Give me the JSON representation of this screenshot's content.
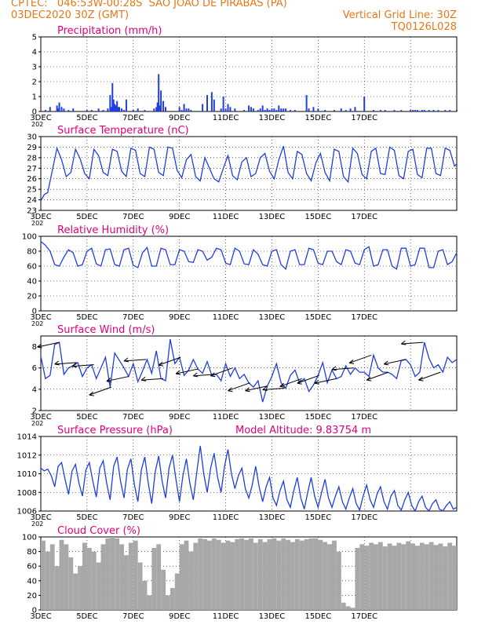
{
  "header": {
    "line1": "CPTEC:   046:53W-00:28S  SAO JOAO DE PIRABAS (PA)",
    "line2_left": "03DEC2020 30Z (GMT)",
    "line2_right": "Vertical Grid Line: 30Z",
    "line3_right": "TQ0126L028",
    "line1_color": "#e67817"
  },
  "colors": {
    "series": "#1f3fe0",
    "bar": "#1f3fe0",
    "cloud": "#a8a8a8",
    "title": "#e0007a",
    "grid": "#000000"
  },
  "x_ticks": [
    "3DEC",
    "5DEC",
    "7DEC",
    "9DEC",
    "11DEC",
    "13DEC",
    "15DEC",
    "17DEC"
  ],
  "x_tick_fragment": "202",
  "chart_data": [
    {
      "id": "precip",
      "type": "bar",
      "title": "Precipitation (mm/h)",
      "ylim": [
        0,
        5
      ],
      "yticks": [
        0,
        1,
        2,
        3,
        4,
        5
      ],
      "grid": true,
      "x_unit": "days since 3DEC",
      "x": [
        0.2,
        0.4,
        0.7,
        0.75,
        0.8,
        0.9,
        1.0,
        1.2,
        1.4,
        2.0,
        2.2,
        2.5,
        2.7,
        2.9,
        3.0,
        3.05,
        3.1,
        3.15,
        3.2,
        3.25,
        3.3,
        3.35,
        3.4,
        3.5,
        3.6,
        3.7,
        4.0,
        4.2,
        4.5,
        4.9,
        5.0,
        5.05,
        5.1,
        5.15,
        5.2,
        5.3,
        5.4,
        6.0,
        6.1,
        6.2,
        6.3,
        6.4,
        6.5,
        7.0,
        7.2,
        7.4,
        7.5,
        7.8,
        7.9,
        8.0,
        8.1,
        8.2,
        8.4,
        8.8,
        9.0,
        9.1,
        9.2,
        9.4,
        9.5,
        9.6,
        9.7,
        9.8,
        9.9,
        10.0,
        10.1,
        10.2,
        10.3,
        10.4,
        10.5,
        10.6,
        10.8,
        11.0,
        11.5,
        11.6,
        11.8,
        12.0,
        12.3,
        12.7,
        13.0,
        13.2,
        13.4,
        13.6,
        14.0,
        14.4,
        14.7,
        14.9,
        15.3,
        15.6,
        16.0,
        16.1,
        16.2,
        16.3,
        16.5,
        16.6,
        16.8,
        17.0,
        17.2,
        17.5,
        17.7,
        18.0
      ],
      "values": [
        0.1,
        0.3,
        0.4,
        0.2,
        0.6,
        0.3,
        0.2,
        0.1,
        0.2,
        0.1,
        0.1,
        0.2,
        0.1,
        0.2,
        1.1,
        0.3,
        1.9,
        0.8,
        0.5,
        0.4,
        0.7,
        0.3,
        0.3,
        0.2,
        0.1,
        0.8,
        0.1,
        0.2,
        0.1,
        0.2,
        0.3,
        0.6,
        2.5,
        0.4,
        1.4,
        0.7,
        0.3,
        0.3,
        0.1,
        0.5,
        0.2,
        0.2,
        0.1,
        0.5,
        1.1,
        1.3,
        0.8,
        0.2,
        1.0,
        0.2,
        0.5,
        0.3,
        0.2,
        0.1,
        0.4,
        0.3,
        0.2,
        0.1,
        0.2,
        0.4,
        0.1,
        0.2,
        0.1,
        0.2,
        0.2,
        0.1,
        0.4,
        0.2,
        0.2,
        0.2,
        0.1,
        0.1,
        1.1,
        0.2,
        0.3,
        0.2,
        0.1,
        0.1,
        0.2,
        0.1,
        0.2,
        0.3,
        1.0,
        0.1,
        0.1,
        0.1,
        0.1,
        0.1,
        0.1,
        0.1,
        0.1,
        0.1,
        0.1,
        0.1,
        0.1,
        0.1,
        0.1,
        0.1,
        0.1,
        0.1
      ]
    },
    {
      "id": "temp",
      "type": "line",
      "title": "Surface Temperature (nC)",
      "ylim": [
        23,
        30
      ],
      "yticks": [
        23,
        24,
        25,
        26,
        27,
        28,
        29,
        30
      ],
      "grid": true,
      "x_unit": "days since 3DEC",
      "x": [
        0,
        0.15,
        0.3,
        0.5,
        0.7,
        0.9,
        1.1,
        1.3,
        1.5,
        1.7,
        1.9,
        2.1,
        2.3,
        2.5,
        2.7,
        2.9,
        3.1,
        3.3,
        3.5,
        3.7,
        3.9,
        4.1,
        4.3,
        4.5,
        4.7,
        4.9,
        5.1,
        5.3,
        5.5,
        5.7,
        5.9,
        6.1,
        6.3,
        6.5,
        6.7,
        6.9,
        7.1,
        7.3,
        7.5,
        7.7,
        7.9,
        8.1,
        8.3,
        8.5,
        8.7,
        8.9,
        9.1,
        9.3,
        9.5,
        9.7,
        9.9,
        10.1,
        10.3,
        10.5,
        10.7,
        10.9,
        11.1,
        11.3,
        11.5,
        11.7,
        11.9,
        12.1,
        12.3,
        12.5,
        12.7,
        12.9,
        13.1,
        13.3,
        13.5,
        13.7,
        13.9,
        14.1,
        14.3,
        14.5,
        14.7,
        14.9,
        15.1,
        15.3,
        15.5,
        15.7,
        15.9,
        16.1,
        16.3,
        16.5,
        16.7,
        16.9,
        17.1,
        17.3,
        17.5,
        17.7,
        17.9,
        18.0
      ],
      "values": [
        23.9,
        24.5,
        24.7,
        26.8,
        28.9,
        27.8,
        26.2,
        26.6,
        28.8,
        27.9,
        26.5,
        26.0,
        28.8,
        28.2,
        26.6,
        26.3,
        28.8,
        28.6,
        26.7,
        26.2,
        28.9,
        28.7,
        26.5,
        26.2,
        29.0,
        28.8,
        26.6,
        26.3,
        29.0,
        28.9,
        26.8,
        26.1,
        27.8,
        28.3,
        26.2,
        25.8,
        28.0,
        27.0,
        26.0,
        25.7,
        27.0,
        28.2,
        26.3,
        25.9,
        27.6,
        28.0,
        26.2,
        26.5,
        28.0,
        28.4,
        26.7,
        26.0,
        27.8,
        29.1,
        26.6,
        26.0,
        28.6,
        28.3,
        26.5,
        25.8,
        27.5,
        28.4,
        26.6,
        25.8,
        28.8,
        28.6,
        26.2,
        25.7,
        28.9,
        28.4,
        26.4,
        26.0,
        28.6,
        28.9,
        26.5,
        26.4,
        29.0,
        28.7,
        26.3,
        26.0,
        28.6,
        28.8,
        26.4,
        26.1,
        28.9,
        28.9,
        26.5,
        26.3,
        28.9,
        28.7,
        27.2,
        27.4
      ]
    },
    {
      "id": "rh",
      "type": "line",
      "title": "Relative Humidity (%)",
      "ylim": [
        0,
        100
      ],
      "yticks": [
        0,
        20,
        40,
        60,
        80,
        100
      ],
      "grid": true,
      "x_unit": "days since 3DEC",
      "x": [
        0,
        0.2,
        0.4,
        0.6,
        0.8,
        1.0,
        1.2,
        1.4,
        1.6,
        1.8,
        2.0,
        2.2,
        2.4,
        2.6,
        2.8,
        3.0,
        3.2,
        3.4,
        3.6,
        3.8,
        4.0,
        4.2,
        4.4,
        4.6,
        4.8,
        5.0,
        5.2,
        5.4,
        5.6,
        5.8,
        6.0,
        6.2,
        6.4,
        6.6,
        6.8,
        7.0,
        7.2,
        7.4,
        7.6,
        7.8,
        8.0,
        8.2,
        8.4,
        8.6,
        8.8,
        9.0,
        9.2,
        9.4,
        9.6,
        9.8,
        10.0,
        10.2,
        10.4,
        10.6,
        10.8,
        11.0,
        11.2,
        11.4,
        11.6,
        11.8,
        12.0,
        12.2,
        12.4,
        12.6,
        12.8,
        13.0,
        13.2,
        13.4,
        13.6,
        13.8,
        14.0,
        14.2,
        14.4,
        14.6,
        14.8,
        15.0,
        15.2,
        15.4,
        15.6,
        15.8,
        16.0,
        16.2,
        16.4,
        16.6,
        16.8,
        17.0,
        17.2,
        17.4,
        17.6,
        17.8,
        18.0
      ],
      "values": [
        93,
        88,
        80,
        62,
        60,
        72,
        82,
        78,
        60,
        62,
        80,
        84,
        63,
        60,
        82,
        83,
        62,
        60,
        82,
        84,
        61,
        58,
        78,
        85,
        60,
        60,
        84,
        82,
        62,
        62,
        82,
        80,
        66,
        65,
        82,
        80,
        68,
        72,
        84,
        82,
        64,
        62,
        84,
        80,
        63,
        62,
        82,
        76,
        62,
        60,
        80,
        82,
        62,
        56,
        80,
        82,
        62,
        62,
        84,
        82,
        64,
        62,
        80,
        80,
        66,
        62,
        82,
        80,
        64,
        62,
        82,
        86,
        60,
        62,
        82,
        82,
        60,
        56,
        84,
        84,
        60,
        62,
        84,
        84,
        58,
        58,
        80,
        82,
        62,
        66,
        78
      ]
    },
    {
      "id": "wind",
      "type": "line",
      "title": "Surface Wind (m/s)",
      "ylim": [
        2,
        9
      ],
      "yticks": [
        2,
        4,
        6,
        8
      ],
      "grid": true,
      "x_unit": "days since 3DEC",
      "x": [
        0,
        0.2,
        0.4,
        0.6,
        0.8,
        1.0,
        1.2,
        1.4,
        1.6,
        1.8,
        2.0,
        2.2,
        2.4,
        2.6,
        2.8,
        3.0,
        3.2,
        3.4,
        3.6,
        3.8,
        4.0,
        4.2,
        4.4,
        4.6,
        4.8,
        5.0,
        5.2,
        5.4,
        5.6,
        5.8,
        6.0,
        6.2,
        6.4,
        6.6,
        6.8,
        7.0,
        7.2,
        7.4,
        7.6,
        7.8,
        8.0,
        8.2,
        8.4,
        8.6,
        8.8,
        9.0,
        9.2,
        9.4,
        9.6,
        9.8,
        10.0,
        10.2,
        10.4,
        10.6,
        10.8,
        11.0,
        11.2,
        11.4,
        11.6,
        11.8,
        12.0,
        12.2,
        12.4,
        12.6,
        12.8,
        13.0,
        13.2,
        13.4,
        13.6,
        13.8,
        14.0,
        14.2,
        14.4,
        14.6,
        14.8,
        15.0,
        15.2,
        15.4,
        15.6,
        15.8,
        16.0,
        16.2,
        16.4,
        16.6,
        16.8,
        17.0,
        17.2,
        17.4,
        17.6,
        17.8,
        18.0
      ],
      "values": [
        7.1,
        5.0,
        5.3,
        8.2,
        8.4,
        5.4,
        6.0,
        6.2,
        6.5,
        5.2,
        6.0,
        6.3,
        5.0,
        6.0,
        7.0,
        4.2,
        7.4,
        6.7,
        6.0,
        5.2,
        6.4,
        4.7,
        5.7,
        6.8,
        5.5,
        7.6,
        5.0,
        4.8,
        8.7,
        6.4,
        7.0,
        5.3,
        5.8,
        6.8,
        5.9,
        5.5,
        6.6,
        5.3,
        5.4,
        4.8,
        6.4,
        5.2,
        6.0,
        5.0,
        5.4,
        4.6,
        4.2,
        4.8,
        2.8,
        4.3,
        5.2,
        6.4,
        4.6,
        4.1,
        5.3,
        5.8,
        4.6,
        5.0,
        3.8,
        4.4,
        5.3,
        6.5,
        4.6,
        5.8,
        5.0,
        5.2,
        6.2,
        5.4,
        6.0,
        5.6,
        5.6,
        5.2,
        7.2,
        6.0,
        5.6,
        5.6,
        5.4,
        5.0,
        6.7,
        6.8,
        6.3,
        5.2,
        5.6,
        8.4,
        6.9,
        6.0,
        6.3,
        5.6,
        7.0,
        6.5,
        6.8
      ]
    },
    {
      "id": "pres",
      "type": "line",
      "title": "Surface Pressure (hPa)",
      "annotation": "Model Altitude: 9.83754 m",
      "ylim": [
        1006,
        1014
      ],
      "yticks": [
        1006,
        1008,
        1010,
        1012,
        1014
      ],
      "grid": true,
      "x_unit": "days since 3DEC",
      "x": [
        0,
        0.15,
        0.3,
        0.45,
        0.6,
        0.75,
        0.9,
        1.05,
        1.2,
        1.35,
        1.5,
        1.65,
        1.8,
        1.95,
        2.1,
        2.25,
        2.4,
        2.55,
        2.7,
        2.85,
        3.0,
        3.15,
        3.3,
        3.45,
        3.6,
        3.75,
        3.9,
        4.05,
        4.2,
        4.35,
        4.5,
        4.65,
        4.8,
        4.95,
        5.1,
        5.25,
        5.4,
        5.55,
        5.7,
        5.85,
        6.0,
        6.15,
        6.3,
        6.45,
        6.6,
        6.75,
        6.9,
        7.05,
        7.2,
        7.35,
        7.5,
        7.65,
        7.8,
        7.95,
        8.1,
        8.25,
        8.4,
        8.55,
        8.7,
        8.85,
        9.0,
        9.15,
        9.3,
        9.45,
        9.6,
        9.75,
        9.9,
        10.05,
        10.2,
        10.35,
        10.5,
        10.65,
        10.8,
        10.95,
        11.1,
        11.25,
        11.4,
        11.55,
        11.7,
        11.85,
        12.0,
        12.15,
        12.3,
        12.45,
        12.6,
        12.75,
        12.9,
        13.05,
        13.2,
        13.35,
        13.5,
        13.65,
        13.8,
        13.95,
        14.1,
        14.25,
        14.4,
        14.55,
        14.7,
        14.85,
        15.0,
        15.15,
        15.3,
        15.45,
        15.6,
        15.75,
        15.9,
        16.05,
        16.2,
        16.35,
        16.5,
        16.65,
        16.8,
        16.95,
        17.1,
        17.25,
        17.4,
        17.55,
        17.7,
        17.85,
        18.0
      ],
      "values": [
        1010.6,
        1010.3,
        1010.5,
        1009.8,
        1008.6,
        1010.8,
        1011.2,
        1009.4,
        1007.8,
        1010.3,
        1011.0,
        1009.0,
        1007.6,
        1010.4,
        1011.2,
        1009.2,
        1007.5,
        1010.6,
        1011.4,
        1009.0,
        1007.2,
        1010.8,
        1011.8,
        1009.2,
        1007.4,
        1010.5,
        1011.6,
        1008.8,
        1007.0,
        1010.4,
        1011.8,
        1009.0,
        1006.8,
        1010.2,
        1011.9,
        1009.2,
        1007.4,
        1010.6,
        1012.0,
        1009.4,
        1007.0,
        1009.8,
        1011.6,
        1009.0,
        1007.2,
        1010.2,
        1013.0,
        1010.0,
        1008.0,
        1010.6,
        1012.2,
        1009.6,
        1008.0,
        1010.8,
        1012.6,
        1010.0,
        1008.4,
        1009.8,
        1010.6,
        1008.4,
        1007.4,
        1008.8,
        1010.8,
        1008.6,
        1007.0,
        1008.6,
        1009.6,
        1007.4,
        1006.6,
        1008.2,
        1009.2,
        1007.2,
        1006.4,
        1008.2,
        1009.6,
        1007.4,
        1006.2,
        1008.0,
        1009.6,
        1007.6,
        1006.4,
        1008.0,
        1009.4,
        1007.4,
        1006.4,
        1007.6,
        1008.6,
        1007.0,
        1006.2,
        1007.4,
        1008.4,
        1006.8,
        1006.1,
        1007.6,
        1008.8,
        1007.2,
        1006.4,
        1007.8,
        1008.6,
        1007.0,
        1006.2,
        1007.6,
        1008.2,
        1006.6,
        1006.1,
        1007.2,
        1008.0,
        1006.6,
        1006.0,
        1007.0,
        1007.6,
        1006.4,
        1006.0,
        1006.8,
        1007.2,
        1006.2,
        1006.0,
        1006.6,
        1007.0,
        1006.2,
        1006.4
      ]
    },
    {
      "id": "cloud",
      "type": "bar",
      "title": "Cloud Cover (%)",
      "ylim": [
        0,
        100
      ],
      "yticks": [
        0,
        20,
        40,
        60,
        80,
        100
      ],
      "grid": true,
      "x_unit": "days since 3DEC",
      "x": [
        0.0,
        0.2,
        0.4,
        0.6,
        0.8,
        1.0,
        1.2,
        1.4,
        1.6,
        1.8,
        2.0,
        2.2,
        2.4,
        2.6,
        2.8,
        3.0,
        3.2,
        3.4,
        3.6,
        3.8,
        4.0,
        4.2,
        4.4,
        4.6,
        4.8,
        5.0,
        5.2,
        5.4,
        5.6,
        5.8,
        6.0,
        6.2,
        6.4,
        6.6,
        6.8,
        7.0,
        7.2,
        7.4,
        7.6,
        7.8,
        8.0,
        8.2,
        8.4,
        8.6,
        8.8,
        9.0,
        9.2,
        9.4,
        9.6,
        9.8,
        10.0,
        10.2,
        10.4,
        10.6,
        10.8,
        11.0,
        11.2,
        11.4,
        11.6,
        11.8,
        12.0,
        12.2,
        12.4,
        12.6,
        12.8,
        13.0,
        13.2,
        13.4,
        13.6,
        13.8,
        14.0,
        14.2,
        14.4,
        14.6,
        14.8,
        15.0,
        15.2,
        15.4,
        15.6,
        15.8,
        16.0,
        16.2,
        16.4,
        16.6,
        16.8,
        17.0,
        17.2,
        17.4,
        17.6,
        17.8
      ],
      "values": [
        95,
        80,
        90,
        60,
        96,
        90,
        72,
        50,
        60,
        92,
        85,
        80,
        65,
        90,
        98,
        100,
        98,
        90,
        75,
        92,
        95,
        65,
        40,
        20,
        85,
        90,
        55,
        20,
        30,
        50,
        90,
        95,
        80,
        92,
        98,
        97,
        95,
        98,
        96,
        92,
        95,
        93,
        97,
        98,
        96,
        98,
        92,
        97,
        93,
        97,
        98,
        95,
        98,
        96,
        93,
        97,
        95,
        97,
        98,
        98,
        96,
        93,
        90,
        95,
        80,
        10,
        5,
        3,
        85,
        90,
        88,
        92,
        90,
        93,
        87,
        91,
        88,
        92,
        90,
        94,
        91,
        88,
        92,
        90,
        93,
        89,
        91,
        87,
        92,
        88
      ]
    }
  ]
}
